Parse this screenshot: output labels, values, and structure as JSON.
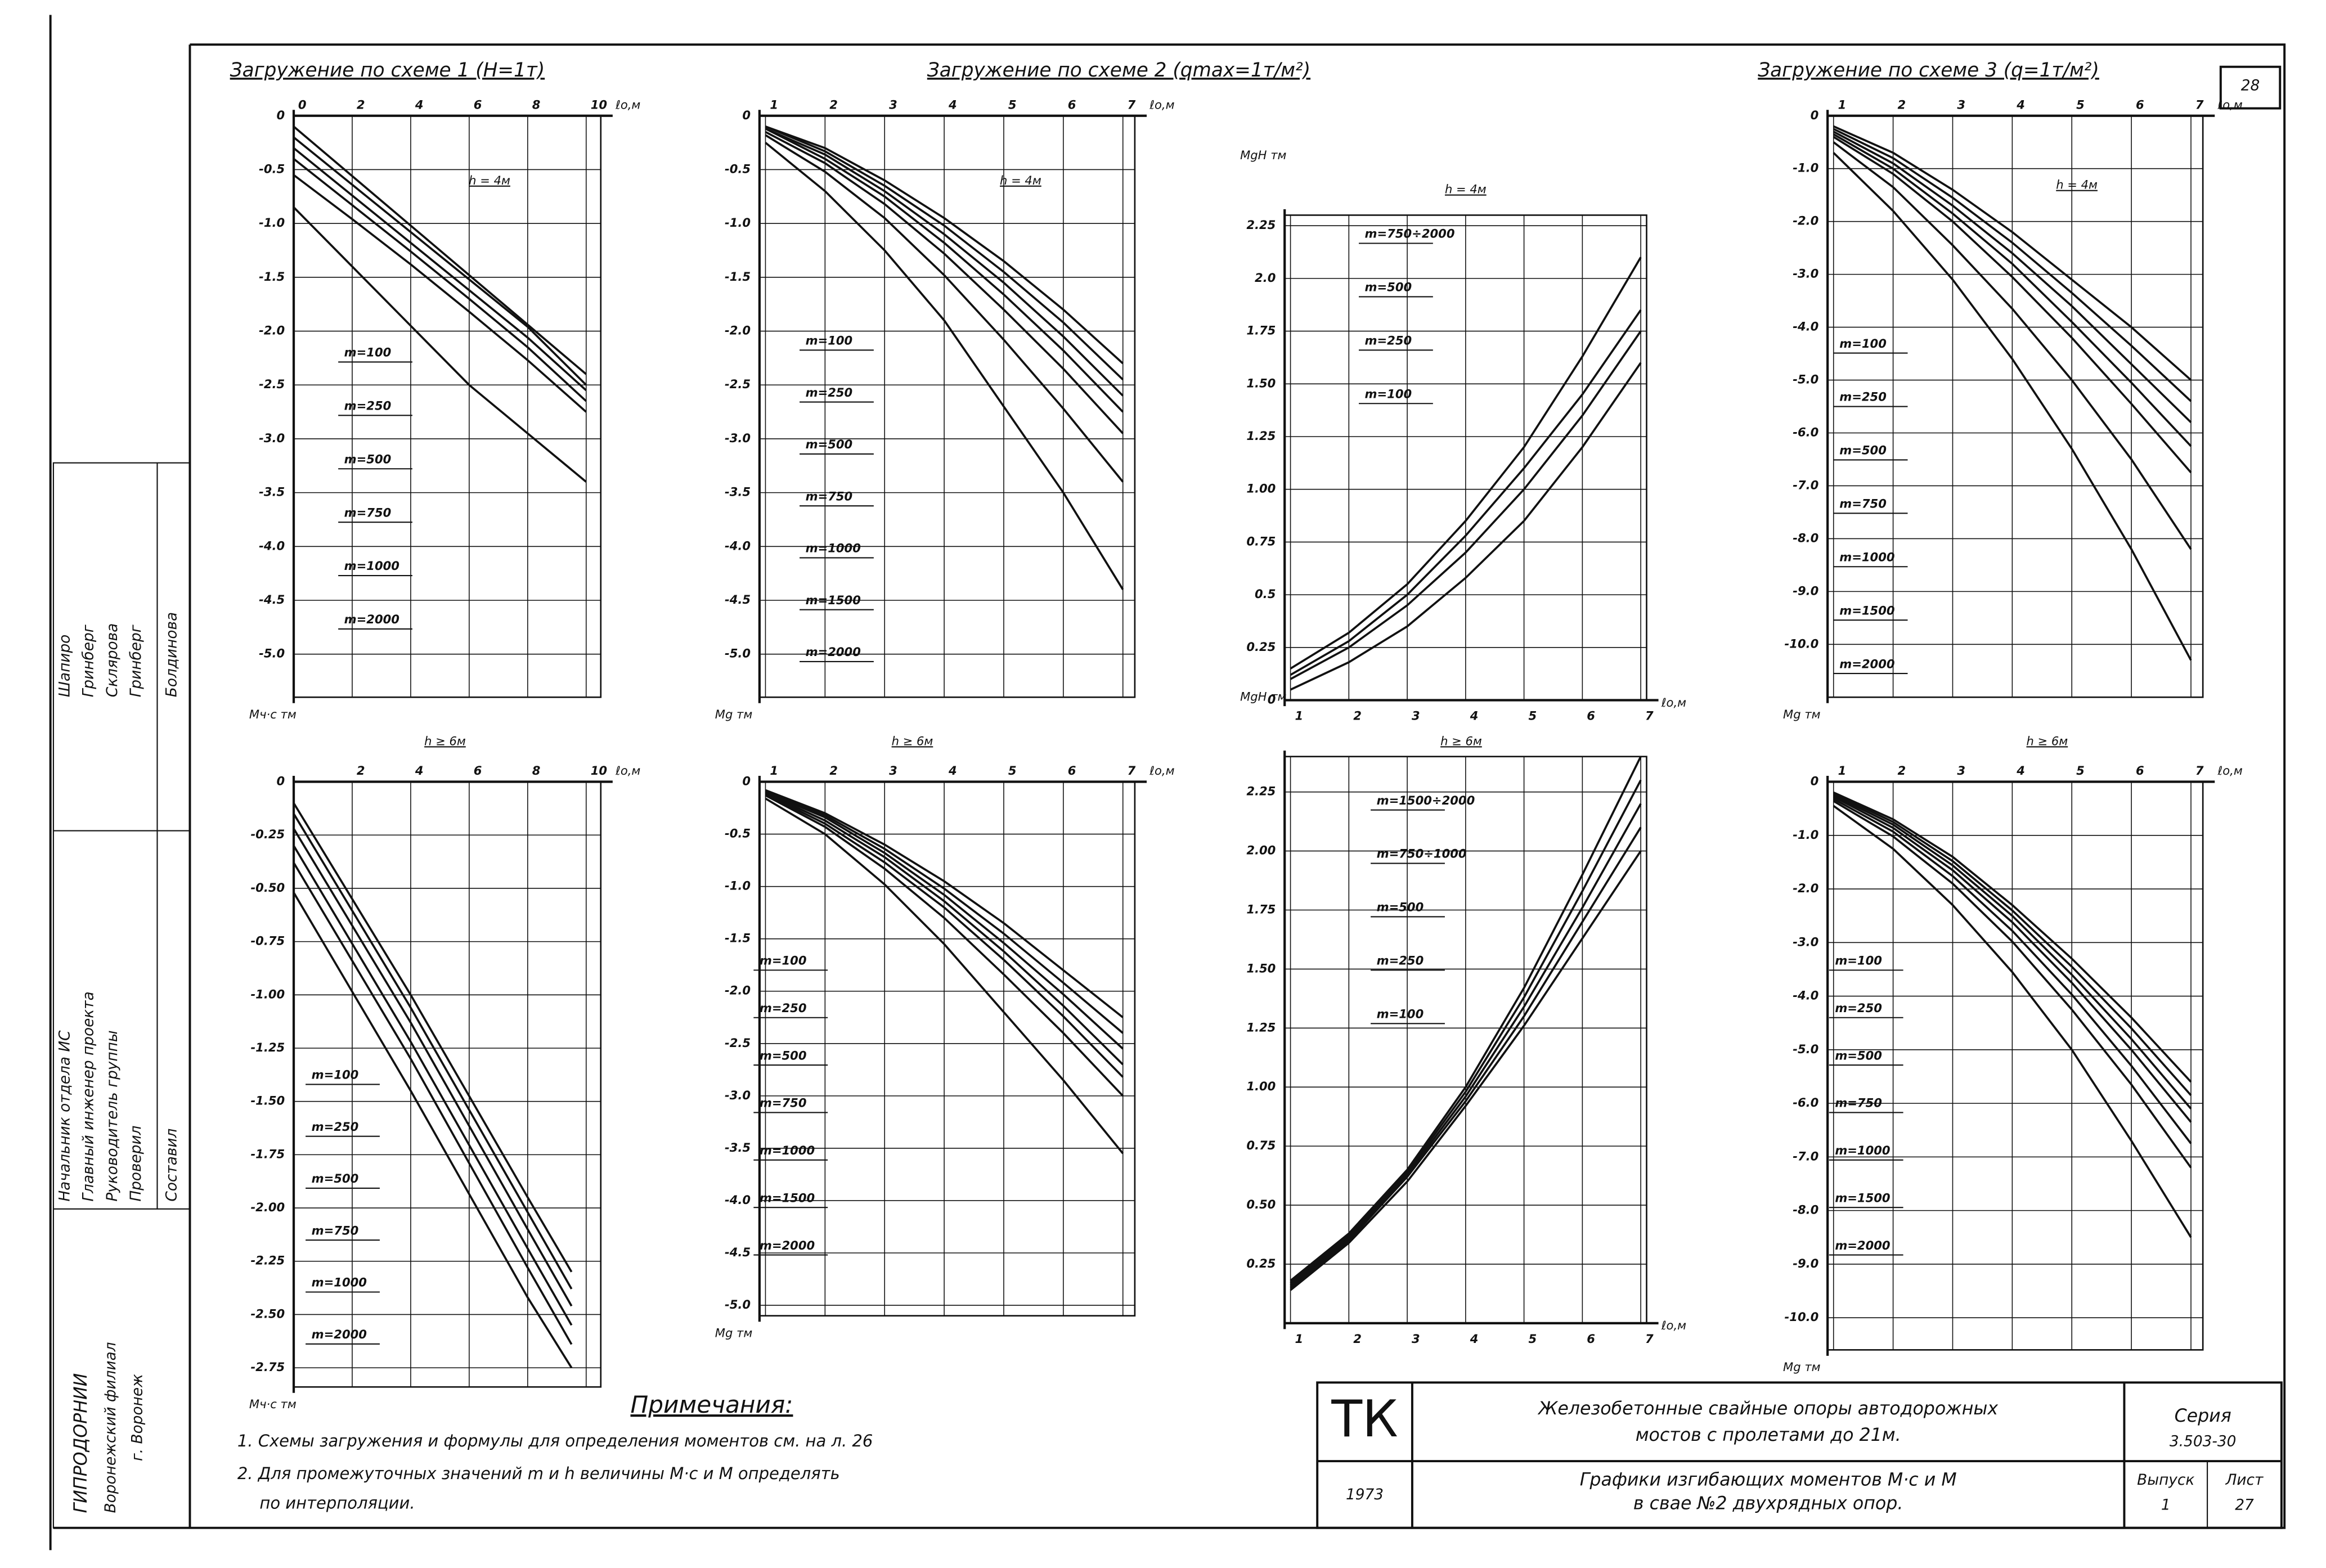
{
  "headers": [
    "Загружение по схеме 1 (H=1т)",
    "Загружение по схеме 2 (qmax=1т/м²)",
    "Загружение по схеме 3 (q=1т/м²)"
  ],
  "sheet_corner": "28",
  "notes": {
    "title": "Примечания:",
    "lines": [
      "1. Схемы загружения и формулы для определения моментов см. на л. 26",
      "2. Для промежуточных значений m и h величины M·c и M определять",
      "по интерполяции."
    ]
  },
  "title_block": {
    "mark": "ТК",
    "name": [
      "Железобетонные свайные опоры автодорожных",
      "мостов с пролетами до 21м."
    ],
    "year": "1973",
    "sheet_title": [
      "Графики изгибающих моментов M·c и M",
      "в свае №2 двухрядных опор."
    ],
    "series_label": "Серия",
    "series": "3.503-30",
    "issue_label": "Выпуск",
    "issue": "1",
    "sheet_label": "Лист",
    "sheet": "27"
  },
  "stamp": {
    "org": [
      "ГИПРОДОРНИИ",
      "Воронежский филиал",
      "г. Воронеж"
    ],
    "roles": [
      "Начальник отдела ИС",
      "Главный инженер проекта",
      "Руководитель группы",
      "Проверил",
      "Составил"
    ],
    "names": [
      "Шапиро",
      "Гринберг",
      "Склярова",
      "Гринберг",
      "Болдинова"
    ]
  },
  "chart_data": [
    {
      "type": "line",
      "title": "h = 4м",
      "x_label": "ℓo,м",
      "y_label": "Mч·c тм",
      "color": "#111",
      "grid": true,
      "x_axis": "top",
      "xlim": [
        0,
        10.5
      ],
      "ylim": [
        -5.4,
        0
      ],
      "xticks": [
        0,
        2,
        4,
        6,
        8,
        10
      ],
      "yticks": [
        0,
        -0.5,
        {
          "value": -1,
          "label": "-1.0"
        },
        -1.5,
        {
          "value": -2,
          "label": "-2.0"
        },
        -2.5,
        {
          "value": -3,
          "label": "-3.0"
        },
        -3.5,
        {
          "value": -4,
          "label": "-4.0"
        },
        -4.5,
        {
          "value": -5,
          "label": "-5.0"
        }
      ],
      "x": [
        0,
        2,
        4,
        6,
        8,
        10
      ],
      "series": [
        {
          "name": "m=100",
          "values": [
            -0.1,
            -0.56,
            -1.02,
            -1.48,
            -1.94,
            -2.4
          ]
        },
        {
          "name": "m=250",
          "values": [
            -0.2,
            -0.64,
            -1.08,
            -1.52,
            -1.96,
            -2.5
          ]
        },
        {
          "name": "m=500",
          "values": [
            -0.3,
            -0.74,
            -1.18,
            -1.62,
            -2.06,
            -2.55
          ]
        },
        {
          "name": "m=750",
          "values": [
            -0.4,
            -0.83,
            -1.26,
            -1.7,
            -2.15,
            -2.65
          ]
        },
        {
          "name": "m=1000",
          "values": [
            -0.55,
            -0.96,
            -1.38,
            -1.82,
            -2.27,
            -2.75
          ]
        },
        {
          "name": "m=2000",
          "values": [
            -0.85,
            -1.4,
            -1.95,
            -2.5,
            -2.95,
            -3.4
          ]
        }
      ]
    },
    {
      "type": "line",
      "title": "h = 4м",
      "x_label": "ℓo,м",
      "y_label": "Mg тм",
      "color": "#111",
      "grid": true,
      "x_axis": "top",
      "xlim": [
        0.9,
        7.2
      ],
      "ylim": [
        -5.4,
        0
      ],
      "xticks": [
        1,
        2,
        3,
        4,
        5,
        6,
        7
      ],
      "yticks": [
        0,
        -0.5,
        {
          "value": -1,
          "label": "-1.0"
        },
        -1.5,
        {
          "value": -2,
          "label": "-2.0"
        },
        -2.5,
        {
          "value": -3,
          "label": "-3.0"
        },
        -3.5,
        {
          "value": -4,
          "label": "-4.0"
        },
        -4.5,
        {
          "value": -5,
          "label": "-5.0"
        }
      ],
      "x": [
        1,
        2,
        3,
        4,
        5,
        6,
        7
      ],
      "series": [
        {
          "name": "m=100",
          "values": [
            -0.1,
            -0.3,
            -0.6,
            -0.95,
            -1.35,
            -1.8,
            -2.3
          ]
        },
        {
          "name": "m=250",
          "values": [
            -0.1,
            -0.33,
            -0.65,
            -1.02,
            -1.45,
            -1.92,
            -2.45
          ]
        },
        {
          "name": "m=500",
          "values": [
            -0.12,
            -0.36,
            -0.7,
            -1.1,
            -1.55,
            -2.05,
            -2.6
          ]
        },
        {
          "name": "m=750",
          "values": [
            -0.12,
            -0.4,
            -0.75,
            -1.18,
            -1.66,
            -2.18,
            -2.75
          ]
        },
        {
          "name": "m=1000",
          "values": [
            -0.15,
            -0.44,
            -0.82,
            -1.28,
            -1.8,
            -2.35,
            -2.95
          ]
        },
        {
          "name": "m=1500",
          "values": [
            -0.18,
            -0.52,
            -0.95,
            -1.48,
            -2.08,
            -2.72,
            -3.4
          ]
        },
        {
          "name": "m=2000",
          "values": [
            -0.25,
            -0.7,
            -1.25,
            -1.9,
            -2.7,
            -3.5,
            -4.4
          ]
        }
      ]
    },
    {
      "type": "line",
      "title": "h = 4м",
      "x_label": "ℓo,м",
      "y_label": "MgH тм",
      "color": "#111",
      "grid": true,
      "x_axis": "bottom",
      "xlim": [
        0.9,
        7.1
      ],
      "ylim": [
        0,
        2.3
      ],
      "xticks": [
        1,
        2,
        3,
        4,
        5,
        6,
        7
      ],
      "yticks": [
        0,
        0.25,
        0.5,
        0.75,
        {
          "value": 1,
          "label": "1.00"
        },
        1.25,
        {
          "value": 1.5,
          "label": "1.50"
        },
        1.75,
        {
          "value": 2,
          "label": "2.0"
        },
        2.25
      ],
      "x": [
        1,
        2,
        3,
        4,
        5,
        6,
        7
      ],
      "series": [
        {
          "name": "m=750÷2000",
          "values": [
            0.15,
            0.32,
            0.55,
            0.85,
            1.2,
            1.63,
            2.1
          ]
        },
        {
          "name": "m=500",
          "values": [
            0.12,
            0.28,
            0.5,
            0.78,
            1.1,
            1.45,
            1.85
          ]
        },
        {
          "name": "m=250",
          "values": [
            0.1,
            0.25,
            0.45,
            0.7,
            1.0,
            1.35,
            1.75
          ]
        },
        {
          "name": "m=100",
          "values": [
            0.05,
            0.18,
            0.35,
            0.58,
            0.85,
            1.2,
            1.6
          ]
        }
      ]
    },
    {
      "type": "line",
      "title": "h = 4м",
      "x_label": "ℓo,м",
      "y_label": "Mg тм",
      "color": "#111",
      "grid": true,
      "x_axis": "top",
      "xlim": [
        0.9,
        7.2
      ],
      "ylim": [
        -11,
        0
      ],
      "xticks": [
        1,
        2,
        3,
        4,
        5,
        6,
        7
      ],
      "yticks": [
        0,
        {
          "value": -1,
          "label": "-1.0"
        },
        {
          "value": -2,
          "label": "-2.0"
        },
        {
          "value": -3,
          "label": "-3.0"
        },
        {
          "value": -4,
          "label": "-4.0"
        },
        {
          "value": -5,
          "label": "-5.0"
        },
        {
          "value": -6,
          "label": "-6.0"
        },
        {
          "value": -7,
          "label": "-7.0"
        },
        {
          "value": -8,
          "label": "-8.0"
        },
        {
          "value": -9,
          "label": "-9.0"
        },
        {
          "value": -10,
          "label": "-10.0"
        }
      ],
      "x": [
        1,
        2,
        3,
        4,
        5,
        6,
        7
      ],
      "series": [
        {
          "name": "m=100",
          "values": [
            -0.2,
            -0.7,
            -1.4,
            -2.2,
            -3.1,
            -4.0,
            -5.0
          ]
        },
        {
          "name": "m=250",
          "values": [
            -0.25,
            -0.8,
            -1.55,
            -2.4,
            -3.35,
            -4.35,
            -5.4
          ]
        },
        {
          "name": "m=500",
          "values": [
            -0.3,
            -0.9,
            -1.7,
            -2.6,
            -3.6,
            -4.7,
            -5.8
          ]
        },
        {
          "name": "m=750",
          "values": [
            -0.35,
            -1.0,
            -1.85,
            -2.8,
            -3.9,
            -5.05,
            -6.25
          ]
        },
        {
          "name": "m=1000",
          "values": [
            -0.4,
            -1.1,
            -2.0,
            -3.05,
            -4.2,
            -5.45,
            -6.75
          ]
        },
        {
          "name": "m=1500",
          "values": [
            -0.5,
            -1.35,
            -2.45,
            -3.65,
            -5.0,
            -6.5,
            -8.2
          ]
        },
        {
          "name": "m=2000",
          "values": [
            -0.7,
            -1.8,
            -3.1,
            -4.6,
            -6.3,
            -8.2,
            -10.3
          ]
        }
      ]
    },
    {
      "type": "line",
      "title": "h ≥ 6м",
      "x_label": "ℓo,м",
      "y_label": "Mч·c тм",
      "color": "#111",
      "grid": true,
      "x_axis": "top",
      "xlim": [
        0,
        10.5
      ],
      "ylim": [
        -2.84,
        0
      ],
      "xticks": [
        2,
        4,
        6,
        8,
        10
      ],
      "yticks": [
        0,
        -0.25,
        {
          "value": -0.5,
          "label": "-0.50"
        },
        -0.75,
        {
          "value": -1,
          "label": "-1.00"
        },
        -1.25,
        {
          "value": -1.5,
          "label": "-1.50"
        },
        -1.75,
        {
          "value": -2,
          "label": "-2.00"
        },
        -2.25,
        {
          "value": -2.5,
          "label": "-2.50"
        },
        -2.75
      ],
      "x": [
        0,
        4,
        8,
        9.5
      ],
      "series": [
        {
          "name": "m=100",
          "values": [
            -0.1,
            -1.0,
            -1.95,
            -2.3
          ]
        },
        {
          "name": "m=250",
          "values": [
            -0.15,
            -1.06,
            -2.02,
            -2.38
          ]
        },
        {
          "name": "m=500",
          "values": [
            -0.22,
            -1.13,
            -2.1,
            -2.46
          ]
        },
        {
          "name": "m=750",
          "values": [
            -0.3,
            -1.22,
            -2.19,
            -2.55
          ]
        },
        {
          "name": "m=1000",
          "values": [
            -0.38,
            -1.3,
            -2.28,
            -2.64
          ]
        },
        {
          "name": "m=2000",
          "values": [
            -0.52,
            -1.45,
            -2.42,
            -2.75
          ]
        }
      ]
    },
    {
      "type": "line",
      "title": "h ≥ 6м",
      "x_label": "ℓo,м",
      "y_label": "Mg тм",
      "color": "#111",
      "grid": true,
      "x_axis": "top",
      "xlim": [
        0.9,
        7.2
      ],
      "ylim": [
        -5.1,
        0
      ],
      "xticks": [
        1,
        2,
        3,
        4,
        5,
        6,
        7
      ],
      "yticks": [
        0,
        -0.5,
        {
          "value": -1,
          "label": "-1.0"
        },
        -1.5,
        {
          "value": -2,
          "label": "-2.0"
        },
        -2.5,
        {
          "value": -3,
          "label": "-3.0"
        },
        -3.5,
        {
          "value": -4,
          "label": "-4.0"
        },
        -4.5,
        {
          "value": -5,
          "label": "-5.0"
        }
      ],
      "x": [
        1,
        2,
        3,
        4,
        5,
        6,
        7
      ],
      "series": [
        {
          "name": "m=100",
          "values": [
            -0.08,
            -0.3,
            -0.6,
            -0.95,
            -1.35,
            -1.8,
            -2.25
          ]
        },
        {
          "name": "m=250",
          "values": [
            -0.09,
            -0.32,
            -0.64,
            -1.02,
            -1.45,
            -1.92,
            -2.4
          ]
        },
        {
          "name": "m=500",
          "values": [
            -0.1,
            -0.34,
            -0.68,
            -1.08,
            -1.54,
            -2.03,
            -2.55
          ]
        },
        {
          "name": "m=750",
          "values": [
            -0.11,
            -0.37,
            -0.72,
            -1.14,
            -1.62,
            -2.14,
            -2.7
          ]
        },
        {
          "name": "m=1000",
          "values": [
            -0.12,
            -0.4,
            -0.77,
            -1.2,
            -1.7,
            -2.24,
            -2.82
          ]
        },
        {
          "name": "m=1500",
          "values": [
            -0.13,
            -0.43,
            -0.83,
            -1.3,
            -1.84,
            -2.4,
            -3.0
          ]
        },
        {
          "name": "m=2000",
          "values": [
            -0.16,
            -0.5,
            -0.98,
            -1.55,
            -2.2,
            -2.85,
            -3.55
          ]
        }
      ]
    },
    {
      "type": "line",
      "title": "h ≥ 6м",
      "x_label": "ℓo,м",
      "y_label": "MgH тм",
      "color": "#111",
      "grid": true,
      "x_axis": "bottom",
      "xlim": [
        0.9,
        7.1
      ],
      "ylim": [
        0,
        2.4
      ],
      "xticks": [
        1,
        2,
        3,
        4,
        5,
        6,
        7
      ],
      "yticks": [
        0.25,
        {
          "value": 0.5,
          "label": "0.50"
        },
        0.75,
        {
          "value": 1,
          "label": "1.00"
        },
        1.25,
        {
          "value": 1.5,
          "label": "1.50"
        },
        1.75,
        {
          "value": 2,
          "label": "2.00"
        },
        2.25
      ],
      "x": [
        1,
        2,
        3,
        4,
        5,
        6,
        7
      ],
      "series": [
        {
          "name": "m=1500÷2000",
          "values": [
            0.18,
            0.38,
            0.65,
            1.0,
            1.42,
            1.9,
            2.4
          ]
        },
        {
          "name": "m=750÷1000",
          "values": [
            0.17,
            0.37,
            0.64,
            0.98,
            1.38,
            1.83,
            2.3
          ]
        },
        {
          "name": "m=500",
          "values": [
            0.16,
            0.36,
            0.63,
            0.96,
            1.34,
            1.76,
            2.2
          ]
        },
        {
          "name": "m=250",
          "values": [
            0.15,
            0.35,
            0.62,
            0.94,
            1.3,
            1.7,
            2.1
          ]
        },
        {
          "name": "m=100",
          "values": [
            0.14,
            0.34,
            0.6,
            0.92,
            1.26,
            1.63,
            2.0
          ]
        }
      ]
    },
    {
      "type": "line",
      "title": "h ≥ 6м",
      "x_label": "ℓo,м",
      "y_label": "Mg тм",
      "color": "#111",
      "grid": true,
      "x_axis": "top",
      "xlim": [
        0.9,
        7.2
      ],
      "ylim": [
        -10.6,
        0
      ],
      "xticks": [
        1,
        2,
        3,
        4,
        5,
        6,
        7
      ],
      "yticks": [
        0,
        {
          "value": -1,
          "label": "-1.0"
        },
        {
          "value": -2,
          "label": "-2.0"
        },
        {
          "value": -3,
          "label": "-3.0"
        },
        {
          "value": -4,
          "label": "-4.0"
        },
        {
          "value": -5,
          "label": "-5.0"
        },
        {
          "value": -6,
          "label": "-6.0"
        },
        {
          "value": -7,
          "label": "-7.0"
        },
        {
          "value": -8,
          "label": "-8.0"
        },
        {
          "value": -9,
          "label": "-9.0"
        },
        {
          "value": -10,
          "label": "-10.0"
        }
      ],
      "x": [
        1,
        2,
        3,
        4,
        5,
        6,
        7
      ],
      "series": [
        {
          "name": "m=100",
          "values": [
            -0.2,
            -0.7,
            -1.4,
            -2.3,
            -3.3,
            -4.4,
            -5.6
          ]
        },
        {
          "name": "m=250",
          "values": [
            -0.22,
            -0.75,
            -1.48,
            -2.4,
            -3.45,
            -4.6,
            -5.85
          ]
        },
        {
          "name": "m=500",
          "values": [
            -0.25,
            -0.8,
            -1.56,
            -2.5,
            -3.6,
            -4.8,
            -6.1
          ]
        },
        {
          "name": "m=750",
          "values": [
            -0.28,
            -0.86,
            -1.65,
            -2.62,
            -3.75,
            -5.0,
            -6.35
          ]
        },
        {
          "name": "m=1000",
          "values": [
            -0.32,
            -0.93,
            -1.76,
            -2.78,
            -3.97,
            -5.3,
            -6.75
          ]
        },
        {
          "name": "m=1500",
          "values": [
            -0.36,
            -1.02,
            -1.9,
            -2.98,
            -4.25,
            -5.65,
            -7.2
          ]
        },
        {
          "name": "m=2000",
          "values": [
            -0.45,
            -1.25,
            -2.3,
            -3.55,
            -5.0,
            -6.7,
            -8.5
          ]
        }
      ]
    }
  ]
}
